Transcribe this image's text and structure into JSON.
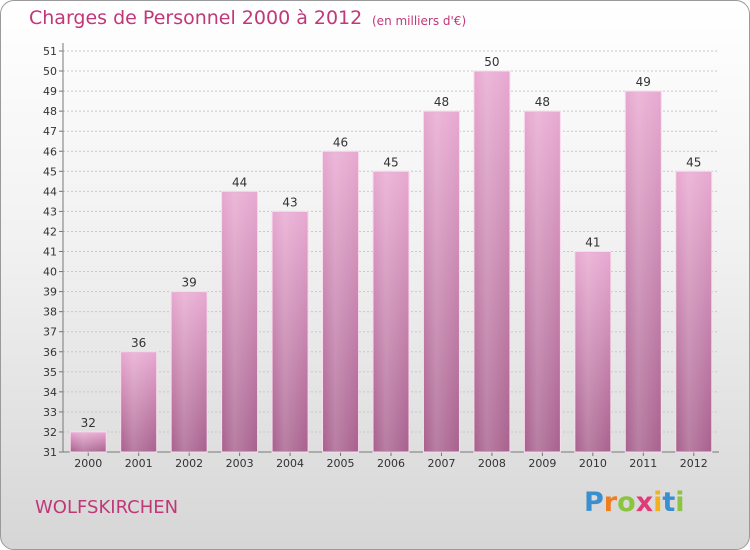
{
  "title": "Charges de Personnel 2000 à 2012",
  "subtitle": "(en milliers d'€)",
  "location": "WOLFSKIRCHEN",
  "brand": {
    "letters": [
      {
        "char": "P",
        "color": "#3a8fd0"
      },
      {
        "char": "r",
        "color": "#f07d1e"
      },
      {
        "char": "o",
        "color": "#8bc43f"
      },
      {
        "char": "x",
        "color": "#e23a78"
      },
      {
        "char": "i",
        "color": "#f2b01e"
      },
      {
        "char": "t",
        "color": "#3a8fd0"
      },
      {
        "char": "i",
        "color": "#8bc43f"
      }
    ]
  },
  "colors": {
    "accent": "#c0377a",
    "bar_top": "#e8a9d1",
    "bar_bottom": "#a8628e",
    "grid": "#c8c8c8"
  },
  "chart_data": {
    "type": "bar",
    "categories": [
      "2000",
      "2001",
      "2002",
      "2003",
      "2004",
      "2005",
      "2006",
      "2007",
      "2008",
      "2009",
      "2010",
      "2011",
      "2012"
    ],
    "values": [
      32,
      36,
      39,
      44,
      43,
      46,
      45,
      48,
      50,
      48,
      41,
      49,
      45
    ],
    "title": "Charges de Personnel 2000 à 2012",
    "subtitle": "(en milliers d'€)",
    "ylim": [
      31,
      51
    ],
    "yticks": [
      31,
      32,
      33,
      34,
      35,
      36,
      37,
      38,
      39,
      40,
      41,
      42,
      43,
      44,
      45,
      46,
      47,
      48,
      49,
      50,
      51
    ],
    "grid": true,
    "data_labels": true
  }
}
